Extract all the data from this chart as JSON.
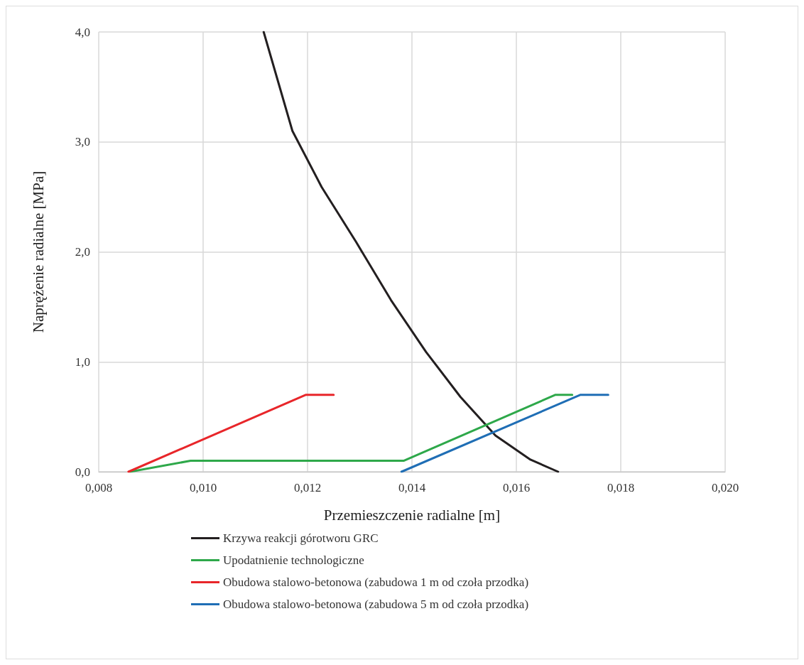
{
  "chart_data": {
    "type": "line",
    "xlabel": "Przemieszczenie radialne [m]",
    "ylabel": "Naprężenie radialne [MPa]",
    "xlim": [
      0.008,
      0.02
    ],
    "xticks": [
      {
        "value": 0.008,
        "label": "0,008"
      },
      {
        "value": 0.01,
        "label": "0,010"
      },
      {
        "value": 0.012,
        "label": "0,012"
      },
      {
        "value": 0.014,
        "label": "0,014"
      },
      {
        "value": 0.016,
        "label": "0,016"
      },
      {
        "value": 0.018,
        "label": "0,018"
      },
      {
        "value": 0.02,
        "label": "0,020"
      }
    ],
    "ylim": [
      0,
      4
    ],
    "yticks": [
      {
        "value": 0,
        "label": "0,0"
      },
      {
        "value": 1,
        "label": "1,0"
      },
      {
        "value": 2,
        "label": "2,0"
      },
      {
        "value": 3,
        "label": "3,0"
      },
      {
        "value": 4,
        "label": "4,0"
      }
    ],
    "grid": true,
    "legend": "bottom",
    "marker": "none",
    "line_style": "solid",
    "series": [
      {
        "name": "Krzywa reakcji górotworu GRC",
        "color": "#231f20",
        "x": [
          0.01116,
          0.01171,
          0.01227,
          0.01293,
          0.0136,
          0.01427,
          0.01493,
          0.0156,
          0.01627,
          0.0168
        ],
        "values": [
          4.0,
          3.1,
          2.59,
          2.09,
          1.56,
          1.09,
          0.68,
          0.33,
          0.11,
          0
        ]
      },
      {
        "name": "Upodatnienie technologiczne",
        "color": "#2ea84a",
        "x": [
          0.0086,
          0.00976,
          0.01384,
          0.01675,
          0.01707
        ],
        "values": [
          0,
          0.1,
          0.1,
          0.7,
          0.7
        ]
      },
      {
        "name": "Obudowa stalowo-betonowa (zabudowa 1 m od czoła przodka)",
        "color": "#e8262a",
        "x": [
          0.00857,
          0.01197,
          0.0125
        ],
        "values": [
          0,
          0.7,
          0.7
        ]
      },
      {
        "name": "Obudowa stalowo-betonowa (zabudowa 5 m od czoła przodka)",
        "color": "#1f6eb5",
        "x": [
          0.0138,
          0.01723,
          0.01776
        ],
        "values": [
          0,
          0.7,
          0.7
        ]
      }
    ]
  }
}
